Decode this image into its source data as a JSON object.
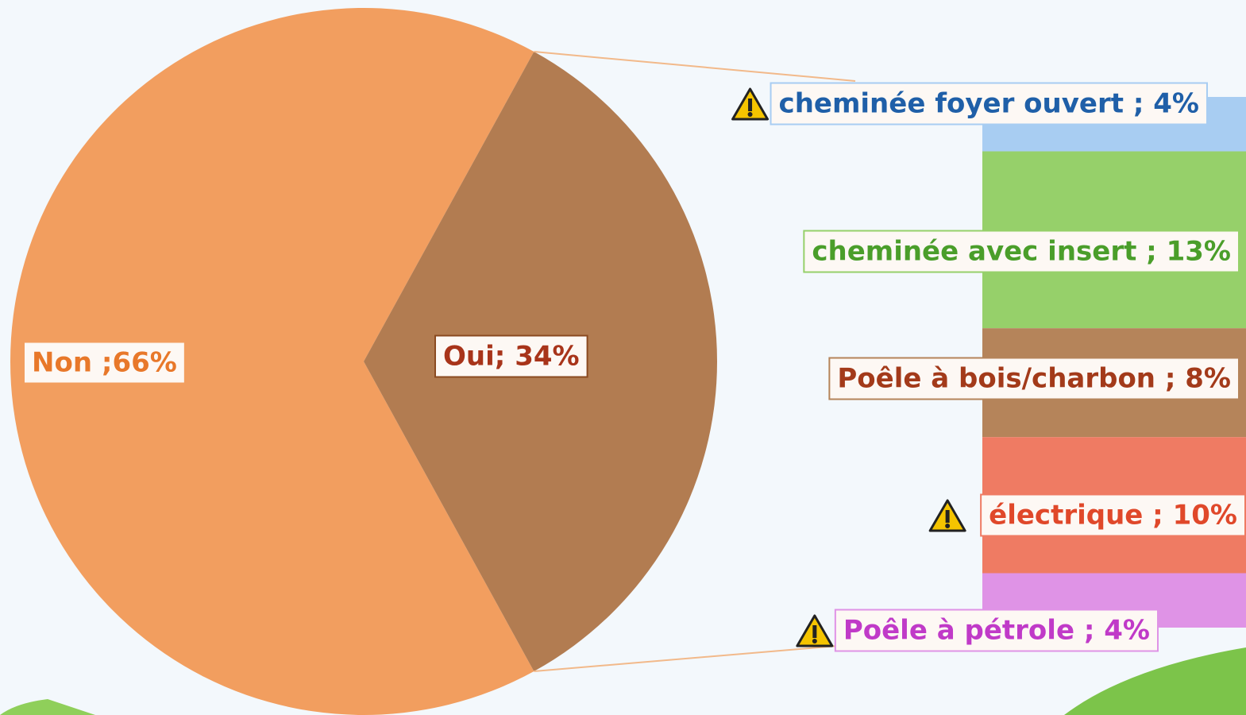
{
  "chart_data": [
    {
      "type": "pie",
      "values": [
        66,
        34
      ],
      "value_labels": [
        "Non ;66%",
        "Oui; 34%"
      ],
      "colors": [
        "#f29e5f",
        "#b27c51"
      ],
      "label_colors": [
        "#e8782a",
        "#a8341a"
      ]
    },
    {
      "type": "bar",
      "stacked": true,
      "values": [
        4,
        13,
        8,
        10,
        4
      ],
      "value_labels": [
        "cheminée foyer ouvert ; 4%",
        "cheminée avec insert ; 13%",
        "Poêle à bois/charbon ; 8%",
        "électrique ; 10%",
        "Poêle à pétrole ; 4%"
      ],
      "colors": [
        "#a8cdf2",
        "#96d06a",
        "#b5845a",
        "#ef7b63",
        "#df93e6"
      ],
      "label_colors": [
        "#1f5fa8",
        "#4a9e2a",
        "#a33a1a",
        "#e0482a",
        "#c03ac8"
      ],
      "warnings": [
        true,
        false,
        false,
        true,
        true
      ]
    }
  ]
}
